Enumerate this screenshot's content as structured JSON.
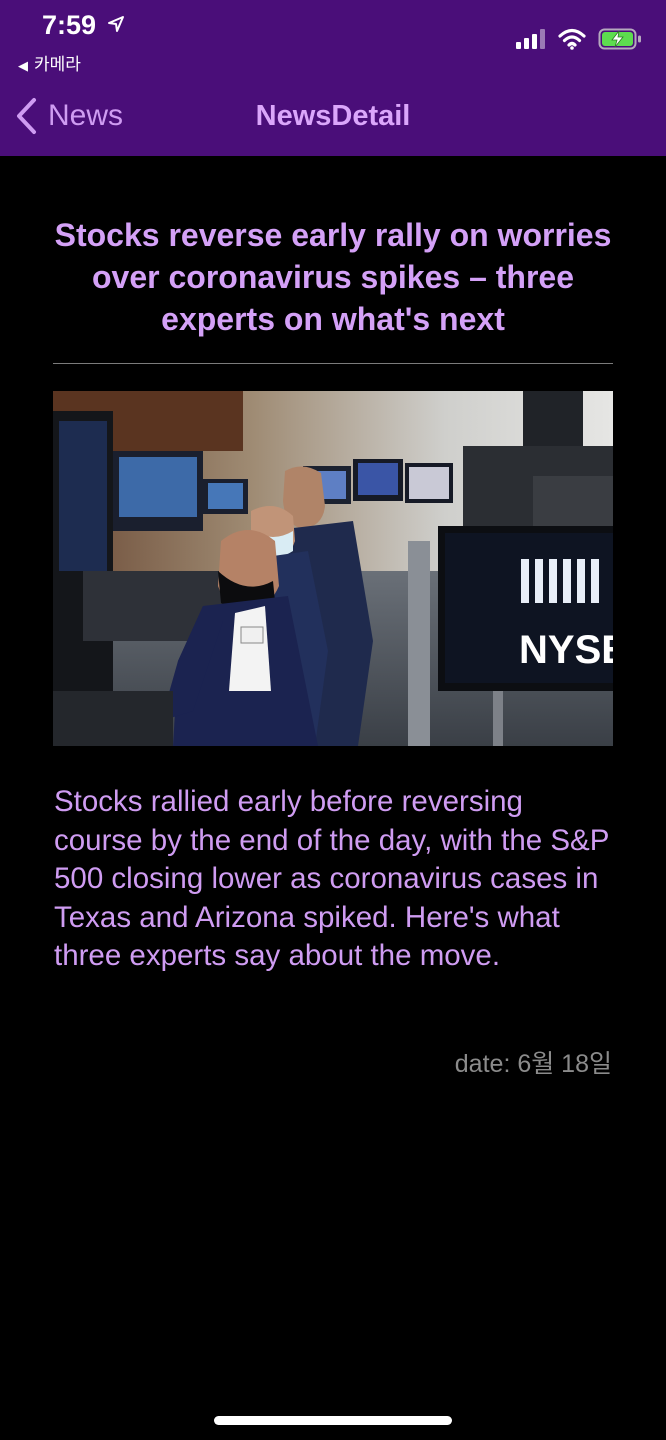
{
  "status_bar": {
    "time": "7:59",
    "back_app": "카메라",
    "icons": [
      "location-arrow-icon",
      "signal-icon",
      "wifi-icon",
      "battery-charging-icon"
    ]
  },
  "nav": {
    "back_label": "News",
    "title": "NewsDetail"
  },
  "article": {
    "headline": "Stocks reverse early rally on worries over coronavirus spikes – three experts on what's next",
    "image_sign_text": "NYSE",
    "summary": "Stocks rallied early before reversing course by the end of the day, with the S&P 500 closing lower as coronavirus cases in Texas and Arizona spiked. Here's what three experts say about the move.",
    "date": "date: 6월 18일"
  },
  "colors": {
    "header_bg": "#4a0e79",
    "accent": "#d4a1f7",
    "page_bg": "#000000",
    "date_text": "#8b8b8b"
  }
}
